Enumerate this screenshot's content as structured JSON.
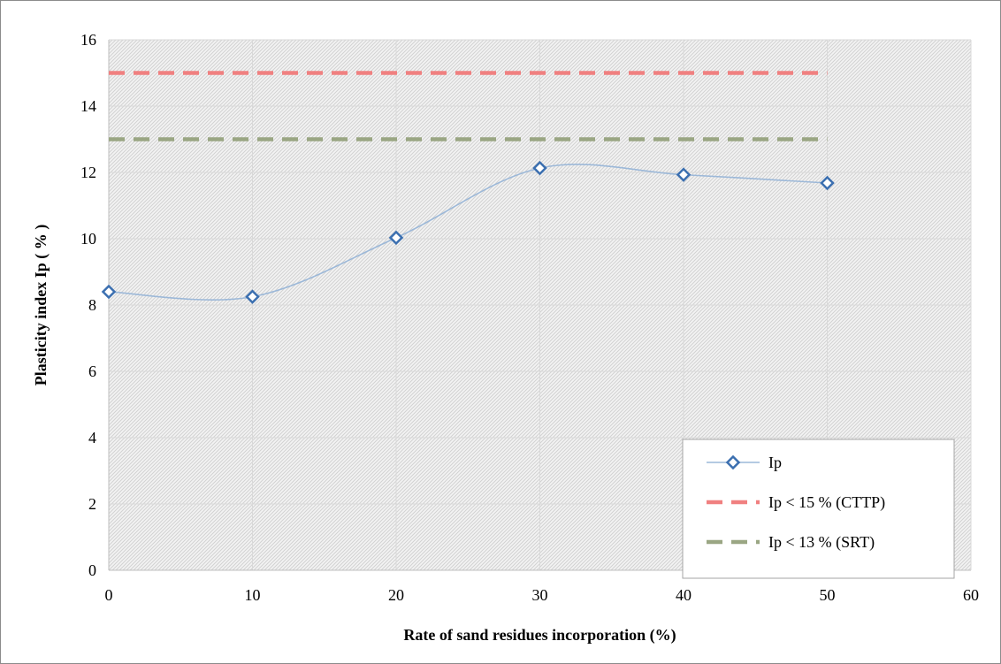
{
  "chart_data": {
    "type": "line",
    "title": "",
    "xlabel": "Rate of sand residues incorporation (%)",
    "ylabel": "Plasticity index Ip ( % )",
    "xlim": [
      0,
      60
    ],
    "ylim": [
      0,
      16
    ],
    "xticks": [
      "0",
      "10",
      "20",
      "30",
      "40",
      "50",
      "60"
    ],
    "yticks": [
      "0",
      "2",
      "4",
      "6",
      "8",
      "10",
      "12",
      "14",
      "16"
    ],
    "grid": true,
    "legend_position": "bottom-right",
    "series": [
      {
        "name": "Ip",
        "style": "smooth-line-diamond-markers",
        "color": "#9cb8d8",
        "marker_color": "#3b6fb0",
        "x": [
          0,
          10,
          20,
          30,
          40,
          50
        ],
        "y": [
          8.4,
          8.25,
          10.03,
          12.13,
          11.93,
          11.68
        ]
      },
      {
        "name": "Ip < 15 % (CTTP)",
        "style": "dashed",
        "color": "#f08080",
        "x": [
          0,
          10,
          20,
          30,
          40,
          50
        ],
        "y": [
          15,
          15,
          15,
          15,
          15,
          15
        ]
      },
      {
        "name": "Ip < 13 % (SRT)",
        "style": "dashed",
        "color": "#9aa683",
        "x": [
          0,
          10,
          20,
          30,
          40,
          50
        ],
        "y": [
          13,
          13,
          13,
          13,
          13,
          13
        ]
      }
    ]
  }
}
